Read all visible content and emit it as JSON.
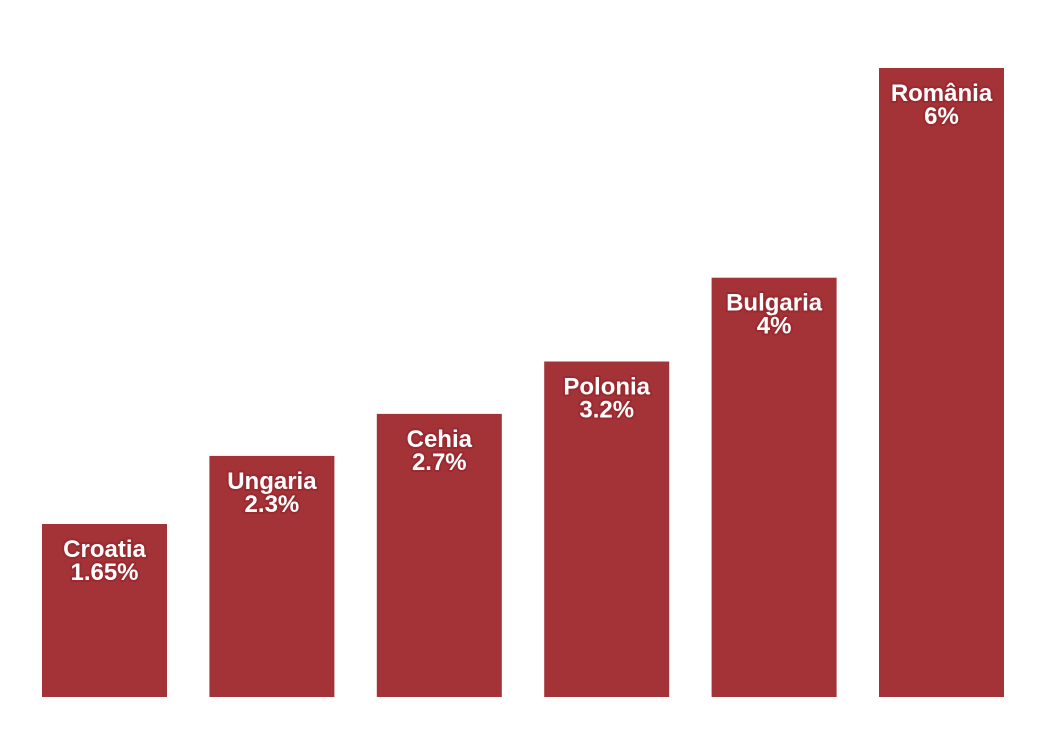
{
  "chart_data": {
    "type": "bar",
    "categories": [
      "Croatia",
      "Ungaria",
      "Cehia",
      "Polonia",
      "Bulgaria",
      "România"
    ],
    "values": [
      1.65,
      2.3,
      2.7,
      3.2,
      4,
      6
    ],
    "value_labels": [
      "1.65%",
      "2.3%",
      "2.7%",
      "3.2%",
      "4%",
      "6%"
    ],
    "ylim": [
      0,
      6
    ],
    "grid": false,
    "legend": "none",
    "bar_color": "#a43338",
    "label_color": "#ffffff"
  }
}
